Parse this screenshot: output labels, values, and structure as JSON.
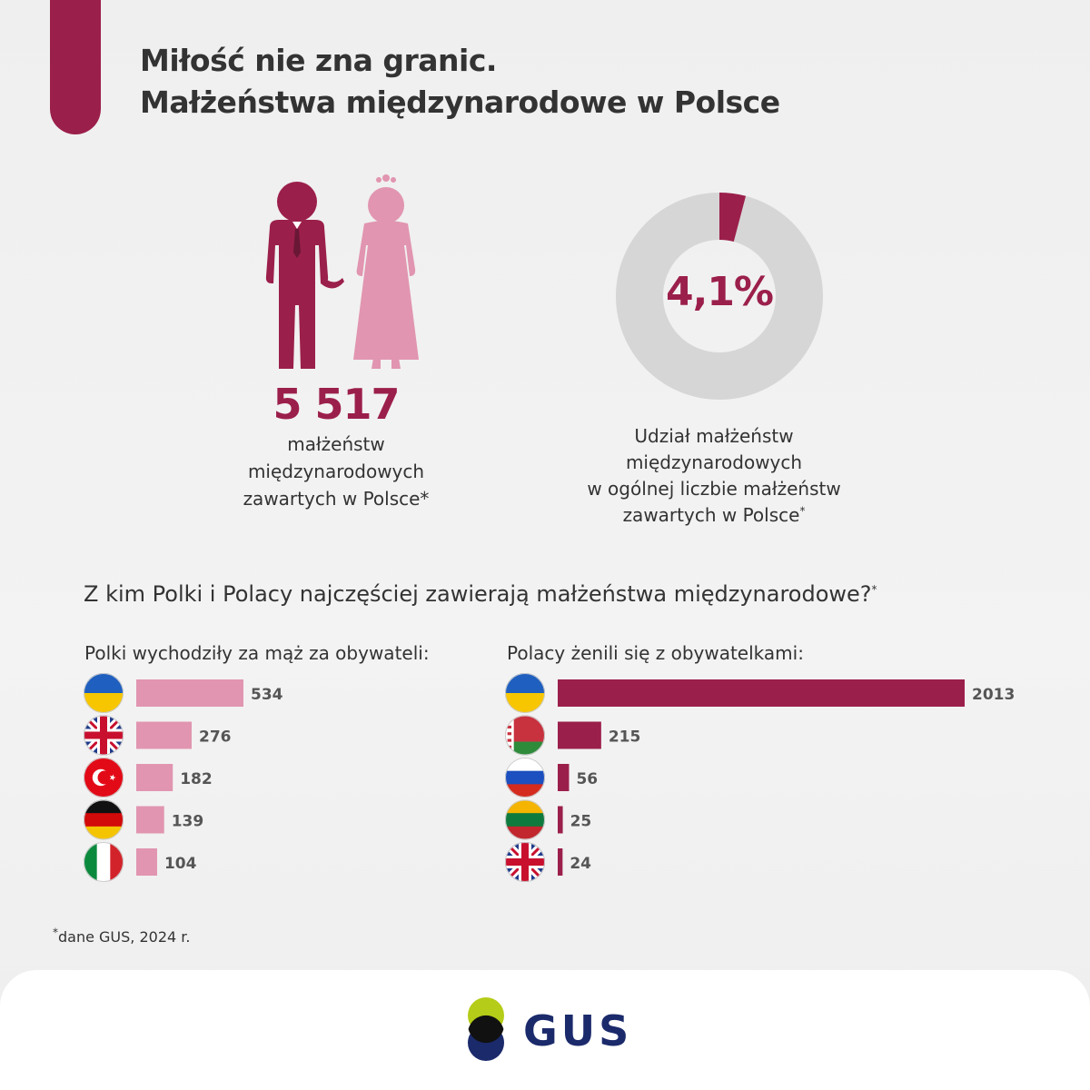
{
  "title": {
    "line1": "Miłość nie zna granic.",
    "line2": "Małżeństwa międzynarodowe w Polsce"
  },
  "colors": {
    "accent": "#9b1f4b",
    "accent_light": "#e195b0",
    "donut_bg": "#d6d6d6",
    "logo_green": "#b5cc18",
    "logo_navy": "#1b2a6b"
  },
  "stat_total": {
    "value": "5 517",
    "caption_line1": "małżeństw",
    "caption_line2": "międzynarodowych",
    "caption_line3": "zawartych w Polsce*"
  },
  "stat_share": {
    "value": "4,1%",
    "share": 4.1,
    "caption_line1": "Udział małżeństw",
    "caption_line2": "międzynarodowych",
    "caption_line3": "w ogólnej liczbie małżeństw",
    "caption_line4": "zawartych w Polsce",
    "caption_mark": "*"
  },
  "question": {
    "text": "Z kim Polki i Polacy najczęściej zawierają małżeństwa międzynarodowe?",
    "mark": "*"
  },
  "chart_data": [
    {
      "type": "bar",
      "orientation": "horizontal",
      "title": "Polki wychodziły za mąż za obywateli:",
      "categories": [
        "ukraine-flag",
        "uk-flag",
        "turkey-flag",
        "germany-flag",
        "italy-flag"
      ],
      "values": [
        534,
        276,
        182,
        139,
        104
      ],
      "value_labels": [
        "534",
        "276",
        "182",
        "139",
        "104"
      ],
      "color": "#e195b0"
    },
    {
      "type": "bar",
      "orientation": "horizontal",
      "title": "Polacy żenili się z obywatelkami:",
      "categories": [
        "ukraine-flag",
        "belarus-flag",
        "russia-flag",
        "lithuania-flag",
        "uk-flag"
      ],
      "values": [
        2013,
        215,
        56,
        25,
        24
      ],
      "value_labels": [
        "2013",
        "215",
        "56",
        "25",
        "24"
      ],
      "color": "#9b1f4b"
    }
  ],
  "footnote": {
    "mark": "*",
    "text": "dane GUS, 2024 r."
  },
  "logo": {
    "text": "GUS"
  }
}
